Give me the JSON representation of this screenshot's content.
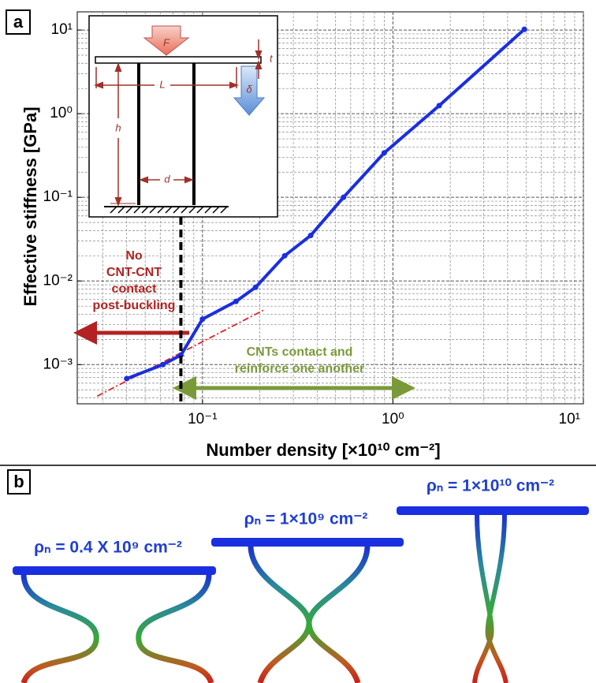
{
  "panel_a_label": "a",
  "panel_b_label": "b",
  "chart_data": {
    "type": "line",
    "xlabel": "Number density [×10¹⁰ cm⁻²]",
    "ylabel": "Effective stiffness [GPa]",
    "log_x": true,
    "log_y": true,
    "grid": true,
    "xlim": [
      0.022,
      10
    ],
    "ylim": [
      0.00034,
      16.5
    ],
    "xticks": [
      {
        "value": 0.1,
        "label": "10⁻¹"
      },
      {
        "value": 1,
        "label": "10⁰"
      },
      {
        "value": 10,
        "label": "10¹"
      }
    ],
    "yticks": [
      {
        "value": 0.001,
        "label": "10⁻³"
      },
      {
        "value": 0.01,
        "label": "10⁻²"
      },
      {
        "value": 0.1,
        "label": "10⁻¹"
      },
      {
        "value": 1,
        "label": "10⁰"
      },
      {
        "value": 10,
        "label": "10¹"
      }
    ],
    "series": [
      {
        "color": "#1a2fe0",
        "x": [
          0.04,
          0.062,
          0.077,
          0.1,
          0.15,
          0.19,
          0.27,
          0.37,
          0.55,
          0.9,
          1.75,
          4.9
        ],
        "values": [
          0.00068,
          0.001,
          0.0013,
          0.0035,
          0.0057,
          0.0084,
          0.02,
          0.035,
          0.1,
          0.34,
          1.25,
          10.2
        ]
      }
    ],
    "fit_line": {
      "color": "#e0202a",
      "x": [
        0.028,
        0.21
      ],
      "values": [
        0.00042,
        0.0045
      ]
    },
    "threshold_x": 0.077,
    "annotations": [
      {
        "text": [
          "No",
          "CNT-CNT",
          "contact",
          "post-buckling"
        ],
        "color": "#b22222"
      },
      {
        "text": [
          "CNTs contact and",
          "reinforce one another"
        ],
        "color": "#7a9a3a"
      }
    ],
    "inset_labels": {
      "force": "F",
      "thickness": "t",
      "length": "L",
      "deflection": "δ",
      "height": "h",
      "spacing": "d"
    }
  },
  "panel_b": {
    "labels": [
      "ρₙ = 0.4 X 10⁹ cm⁻²",
      "ρₙ = 1×10⁹ cm⁻²",
      "ρₙ = 1×10¹⁰ cm⁻²"
    ]
  }
}
